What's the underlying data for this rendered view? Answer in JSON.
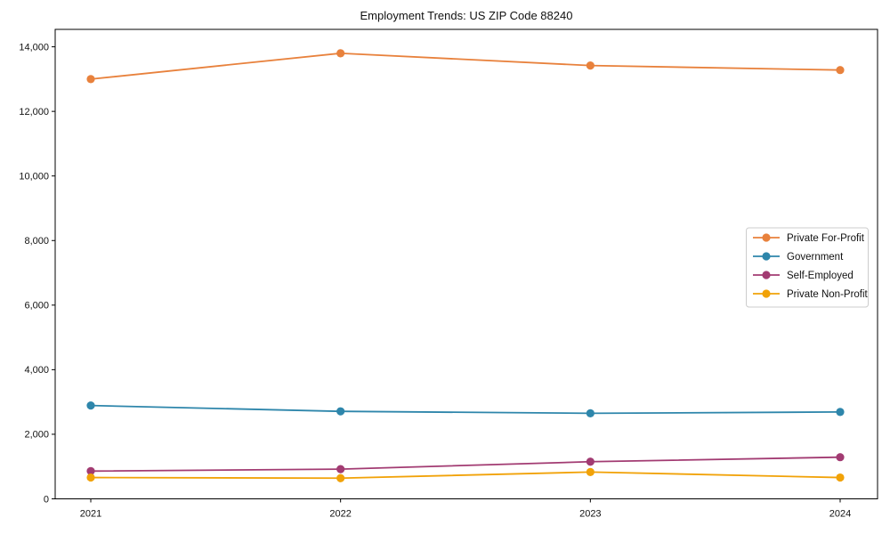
{
  "figure": {
    "title": "Employment Trends: US ZIP Code 88240"
  },
  "chart_data": {
    "type": "line",
    "title": "Employment Trends: US ZIP Code 88240",
    "xlabel": "",
    "ylabel": "",
    "x": [
      2021,
      2022,
      2023,
      2024
    ],
    "xtick_labels": [
      "2021",
      "2022",
      "2023",
      "2024"
    ],
    "yticks": [
      0,
      2000,
      4000,
      6000,
      8000,
      10000,
      12000,
      14000
    ],
    "ytick_labels": [
      "0",
      "2,000",
      "4,000",
      "6,000",
      "8,000",
      "10,000",
      "12,000",
      "14,000"
    ],
    "ylim": [
      0,
      14540
    ],
    "grid": false,
    "legend": {
      "position": "center-right",
      "border_color": "#cccccc",
      "background": "#ffffff"
    },
    "series": [
      {
        "name": "Private For-Profit",
        "color": "#E8813C",
        "values": [
          13000,
          13800,
          13420,
          13280
        ]
      },
      {
        "name": "Government",
        "color": "#2E86AB",
        "values": [
          2890,
          2710,
          2650,
          2690
        ]
      },
      {
        "name": "Self-Employed",
        "color": "#A23B72",
        "values": [
          860,
          920,
          1150,
          1290
        ]
      },
      {
        "name": "Private Non-Profit",
        "color": "#F1A208",
        "values": [
          660,
          640,
          830,
          660
        ]
      }
    ]
  }
}
